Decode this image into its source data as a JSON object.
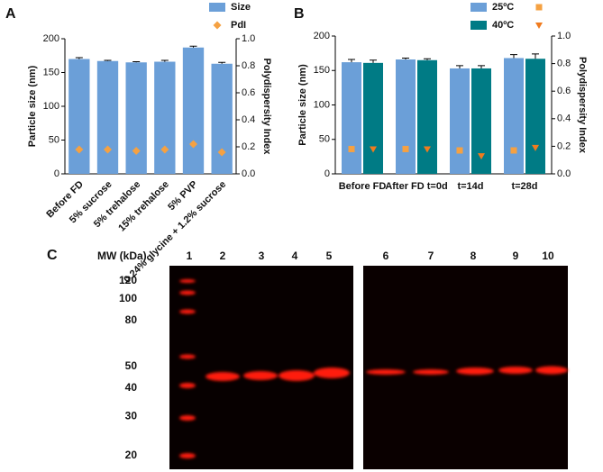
{
  "panel_labels": [
    "A",
    "B",
    "C"
  ],
  "chart_data": [
    {
      "type": "bar",
      "ylabel": "Particle size (nm)",
      "y2label": "Polydispersity Index",
      "categories": [
        "Before FD",
        "5% sucrose",
        "5% trehalose",
        "15% trehalose",
        "5% PVP",
        "0.24% glycine + 1.2% sucrose"
      ],
      "ylim": [
        0,
        200
      ],
      "yticks": [
        0,
        50,
        100,
        150,
        200
      ],
      "y2lim": [
        0,
        1
      ],
      "y2ticks": [
        {
          "value": 0,
          "label": "0.0"
        },
        {
          "value": 0.2,
          "label": "0.2"
        },
        {
          "value": 0.4,
          "label": "0.4"
        },
        {
          "value": 0.6,
          "label": "0.6"
        },
        {
          "value": 0.8,
          "label": "0.8"
        },
        {
          "value": 1,
          "label": "1.0"
        }
      ],
      "series": [
        {
          "name": "Size",
          "color": "#6b9fd8",
          "values": [
            170,
            167,
            165,
            166,
            187,
            163
          ],
          "errors": [
            2,
            1,
            1,
            2,
            2,
            2
          ]
        },
        {
          "name": "PdI",
          "color": "#f5a142",
          "marker": "diamond",
          "axis": "y2",
          "values": [
            0.18,
            0.18,
            0.17,
            0.18,
            0.22,
            0.16
          ]
        }
      ]
    },
    {
      "type": "bar",
      "ylabel": "Particle size (nm)",
      "y2label": "Polydispersity Index",
      "categories": [
        "Before FD",
        "After FD t=0d",
        "t=14d",
        "t=28d"
      ],
      "ylim": [
        0,
        200
      ],
      "yticks": [
        0,
        50,
        100,
        150,
        200
      ],
      "y2lim": [
        0,
        1
      ],
      "y2ticks": [
        {
          "value": 0,
          "label": "0.0"
        },
        {
          "value": 0.2,
          "label": "0.2"
        },
        {
          "value": 0.4,
          "label": "0.4"
        },
        {
          "value": 0.6,
          "label": "0.6"
        },
        {
          "value": 0.8,
          "label": "0.8"
        },
        {
          "value": 1,
          "label": "1.0"
        }
      ],
      "series": [
        {
          "name": "25ºC",
          "color": "#6b9fd8",
          "values": [
            162,
            166,
            153,
            168
          ],
          "errors": [
            4,
            2,
            4,
            5
          ]
        },
        {
          "name": "40ºC",
          "color": "#007b85",
          "values": [
            161,
            165,
            153,
            167
          ],
          "errors": [
            4,
            2,
            4,
            7
          ]
        },
        {
          "color": "#f5a142",
          "marker": "square",
          "axis": "y2",
          "values": [
            0.18,
            0.18,
            0.17,
            0.17
          ]
        },
        {
          "color": "#f07b1e",
          "marker": "triangle",
          "axis": "y2",
          "values": [
            0.18,
            0.18,
            0.13,
            0.19
          ]
        }
      ]
    }
  ],
  "gel": {
    "mw_title": "MW (kDa)",
    "mw_markers": [
      120,
      100,
      80,
      50,
      40,
      30,
      20
    ],
    "lanes": [
      "1",
      "2",
      "3",
      "4",
      "5",
      "6",
      "7",
      "8",
      "9",
      "10"
    ]
  }
}
